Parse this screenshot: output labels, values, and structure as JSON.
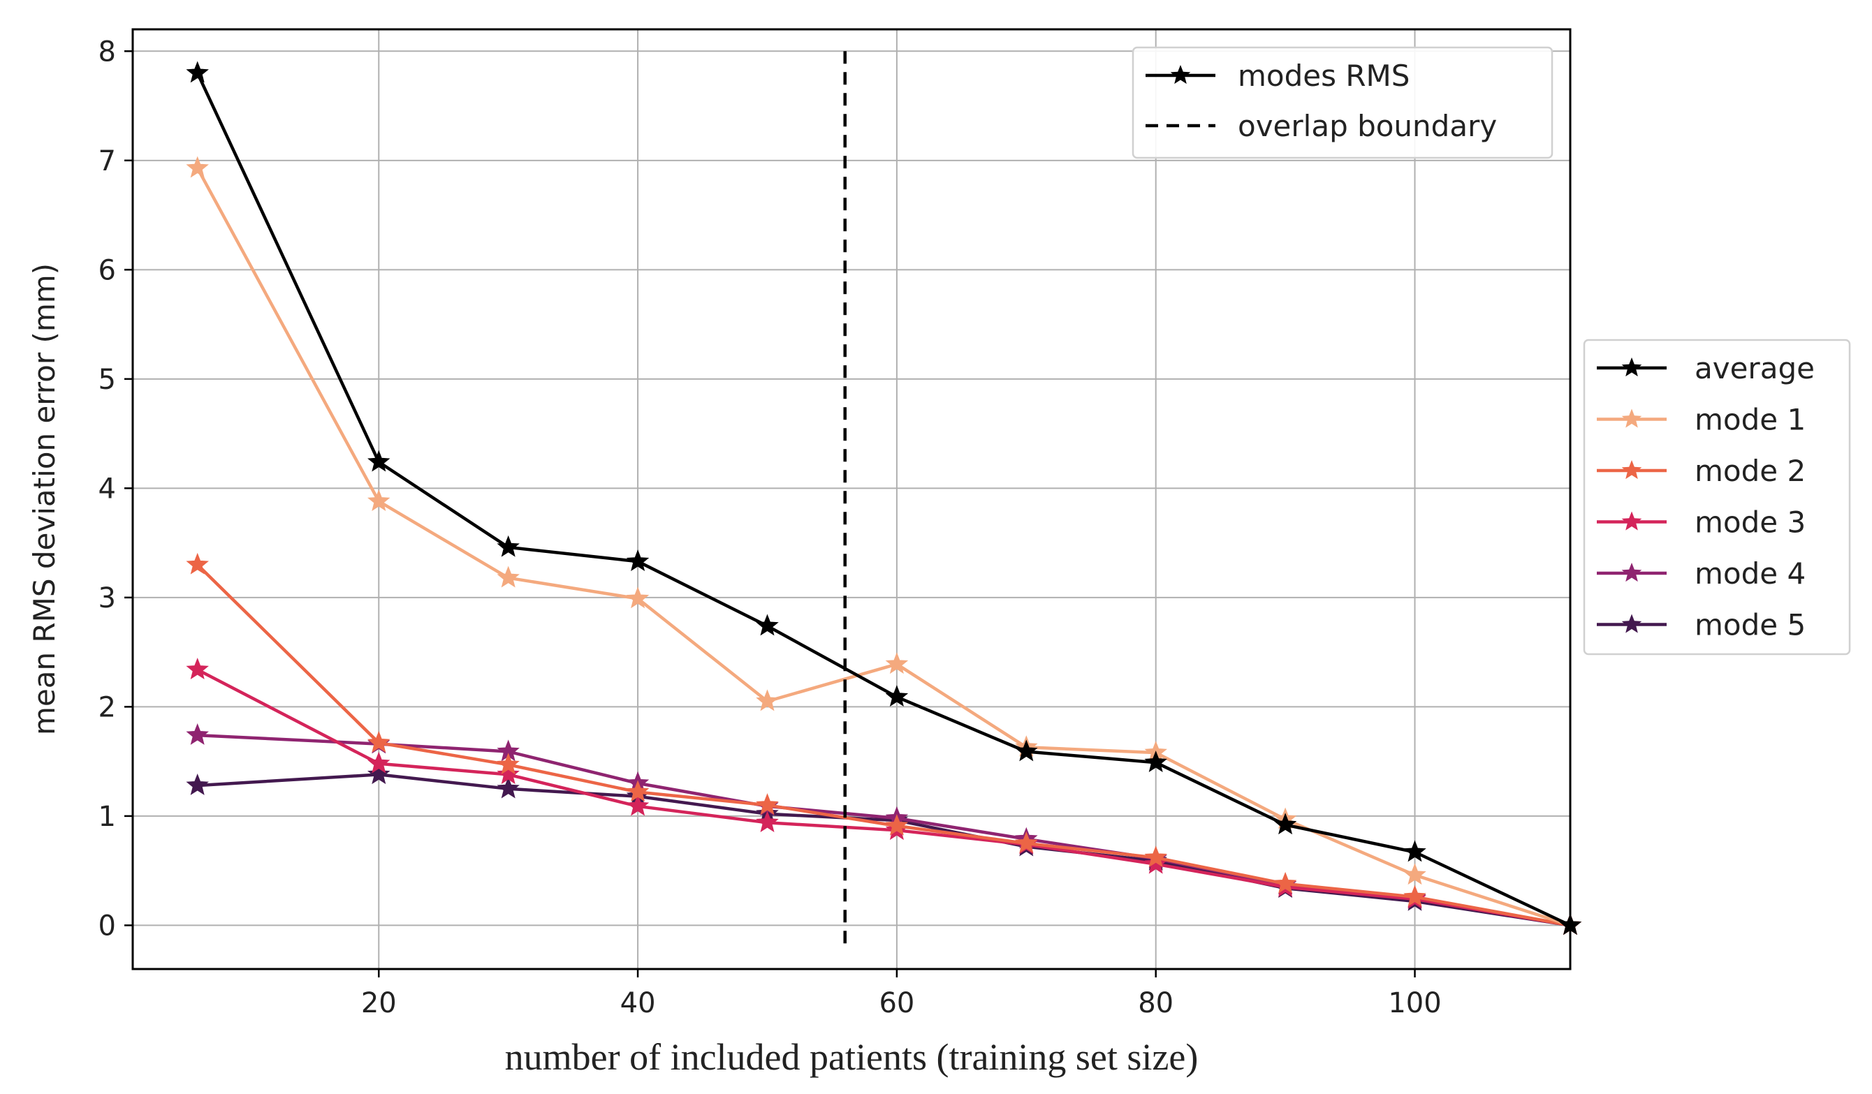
{
  "chart_data": {
    "type": "line",
    "title": "",
    "xlabel": "number of included patients (training set size)",
    "ylabel": "mean RMS deviation error  (mm)",
    "xlim": [
      1,
      112
    ],
    "ylim": [
      -0.4,
      8.2
    ],
    "xticks": [
      20,
      40,
      60,
      80,
      100
    ],
    "xtick_labels": [
      "20",
      "40",
      "60",
      "80",
      "100"
    ],
    "yticks": [
      0,
      1,
      2,
      3,
      4,
      5,
      6,
      7,
      8
    ],
    "ytick_labels": [
      "0",
      "1",
      "2",
      "3",
      "4",
      "5",
      "6",
      "7",
      "8"
    ],
    "grid": true,
    "x": [
      6,
      20,
      30,
      40,
      50,
      60,
      70,
      80,
      90,
      100,
      112
    ],
    "series": [
      {
        "name": "average",
        "color": "#000000",
        "values": [
          7.8,
          4.24,
          3.46,
          3.33,
          2.74,
          2.09,
          1.59,
          1.49,
          0.92,
          0.67,
          0.0
        ]
      },
      {
        "name": "mode 1",
        "color": "#f4a97e",
        "values": [
          6.93,
          3.88,
          3.18,
          2.99,
          2.05,
          2.39,
          1.63,
          1.58,
          0.97,
          0.46,
          0.0
        ]
      },
      {
        "name": "mode 2",
        "color": "#ec6546",
        "values": [
          3.3,
          1.67,
          1.47,
          1.22,
          1.1,
          0.91,
          0.75,
          0.62,
          0.38,
          0.26,
          0.0
        ]
      },
      {
        "name": "mode 3",
        "color": "#d4245a",
        "values": [
          2.34,
          1.48,
          1.38,
          1.09,
          0.94,
          0.87,
          0.74,
          0.56,
          0.35,
          0.24,
          0.0
        ]
      },
      {
        "name": "mode 4",
        "color": "#8f2470",
        "values": [
          1.74,
          1.66,
          1.59,
          1.3,
          1.09,
          0.98,
          0.79,
          0.61,
          0.37,
          0.25,
          0.0
        ]
      },
      {
        "name": "mode 5",
        "color": "#43194f",
        "values": [
          1.28,
          1.38,
          1.25,
          1.18,
          1.02,
          0.96,
          0.72,
          0.59,
          0.34,
          0.22,
          0.0
        ]
      }
    ],
    "vertical_line": {
      "x": 56,
      "label": "overlap boundary",
      "style": "dashed",
      "color": "#000000"
    },
    "legends": [
      {
        "placement": "top-right inside",
        "entries": [
          {
            "label": "modes RMS",
            "style": "star-line",
            "color": "#000000"
          },
          {
            "label": "overlap boundary",
            "style": "dashed",
            "color": "#000000"
          }
        ]
      },
      {
        "placement": "right outside",
        "entries": [
          {
            "label": "average",
            "color": "#000000"
          },
          {
            "label": "mode 1",
            "color": "#f4a97e"
          },
          {
            "label": "mode 2",
            "color": "#ec6546"
          },
          {
            "label": "mode 3",
            "color": "#d4245a"
          },
          {
            "label": "mode 4",
            "color": "#8f2470"
          },
          {
            "label": "mode 5",
            "color": "#43194f"
          }
        ]
      }
    ]
  }
}
